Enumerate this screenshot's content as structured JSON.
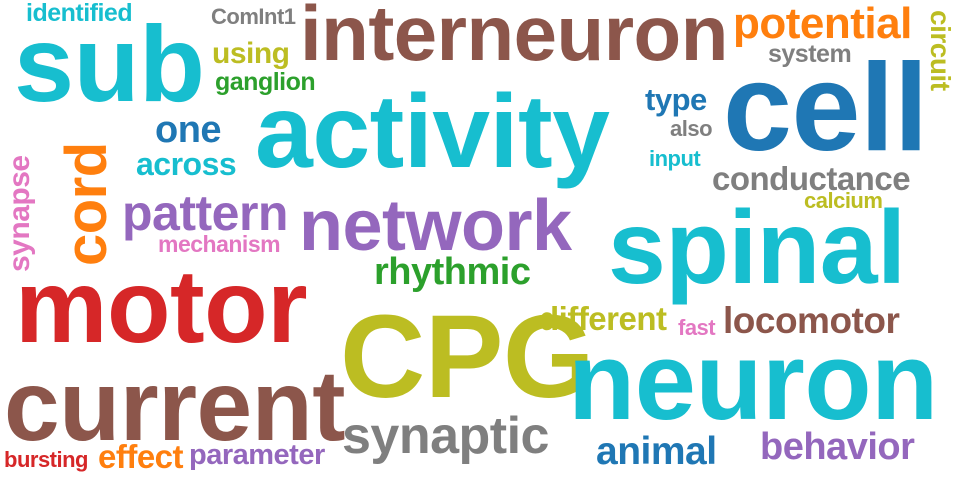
{
  "palette": {
    "teal": "#17becf",
    "brown": "#8c564b",
    "orange": "#ff7f0e",
    "blue": "#1f77b4",
    "olive": "#bcbd22",
    "gray": "#7f7f7f",
    "green": "#2ca02c",
    "purple": "#9467bd",
    "red": "#d62728",
    "pink": "#e377c2"
  },
  "words": {
    "sub": "sub",
    "interneuron": "interneuron",
    "potential": "potential",
    "cell": "cell",
    "activity": "activity",
    "cord": "cord",
    "network": "network",
    "spinal": "spinal",
    "motor": "motor",
    "cpg": "CPG",
    "neuron": "neuron",
    "current": "current",
    "pattern": "pattern",
    "synaptic": "synaptic",
    "conductance": "conductance",
    "rhythmic": "rhythmic",
    "locomotor": "locomotor",
    "animal": "animal",
    "behavior": "behavior",
    "different": "different",
    "one": "one",
    "across": "across",
    "type": "type",
    "identified": "identified",
    "comint1": "ComInt1",
    "using": "using",
    "ganglion": "ganglion",
    "system": "system",
    "circuit": "circuit",
    "also": "also",
    "input": "input",
    "calcium": "calcium",
    "synapse": "synapse",
    "mechanism": "mechanism",
    "fast": "fast",
    "bursting": "bursting",
    "effect": "effect",
    "parameter": "parameter"
  }
}
